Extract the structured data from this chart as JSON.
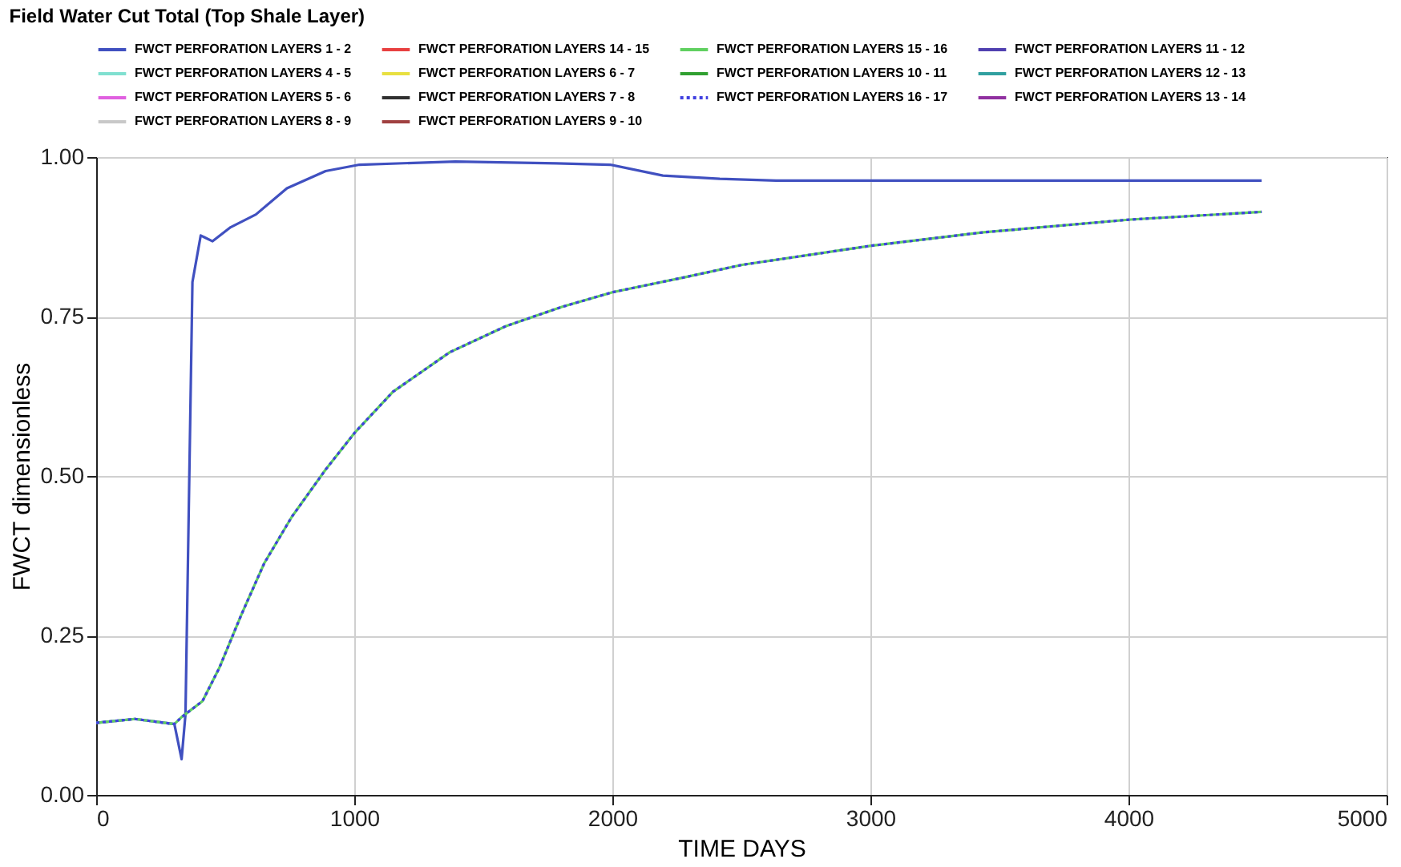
{
  "chart_data": {
    "type": "line",
    "title": "Field Water Cut Total (Top Shale Layer)",
    "xlabel": "TIME  DAYS",
    "ylabel": "FWCT  dimensionless",
    "xlim": [
      0,
      5000
    ],
    "xticks": [
      0,
      1000,
      2000,
      3000,
      4000,
      5000
    ],
    "ylim": [
      0,
      1
    ],
    "yticks": [
      {
        "value": 0,
        "label": "0.00"
      },
      {
        "value": 0.25,
        "label": "0.25"
      },
      {
        "value": 0.5,
        "label": "0.50"
      },
      {
        "value": 0.75,
        "label": "0.75"
      },
      {
        "value": 1,
        "label": "1.00"
      }
    ],
    "grid": true,
    "legend": "top",
    "marker": "none",
    "line_style": "solid",
    "series": [
      {
        "name": "FWCT PERFORATION LAYERS 1 - 2",
        "color": "#4050c0",
        "x": [
          0,
          150,
          303,
          331,
          346,
          373,
          405,
          451,
          521,
          619,
          739,
          889,
          1020,
          1392,
          1784,
          1991,
          2196,
          2416,
          2634,
          4516
        ],
        "values": [
          0.113,
          0.119,
          0.111,
          0.056,
          0.126,
          0.804,
          0.877,
          0.868,
          0.89,
          0.91,
          0.951,
          0.978,
          0.988,
          0.993,
          0.99,
          0.988,
          0.971,
          0.966,
          0.963,
          0.963
        ]
      },
      {
        "name": "FWCT PERFORATION LAYERS 14 - 15",
        "color": "#e84040"
      },
      {
        "name": "FWCT PERFORATION LAYERS 15 - 16",
        "color": "#60d060",
        "x": [
          0,
          150,
          303,
          331,
          412,
          477,
          562,
          651,
          758,
          889,
          1000,
          1150,
          1370,
          1588,
          1804,
          2000,
          2286,
          2503,
          3004,
          3438,
          4007,
          4516
        ],
        "values": [
          0.113,
          0.119,
          0.111,
          0.122,
          0.147,
          0.199,
          0.282,
          0.363,
          0.436,
          0.51,
          0.567,
          0.632,
          0.694,
          0.735,
          0.765,
          0.788,
          0.812,
          0.831,
          0.861,
          0.882,
          0.902,
          0.914
        ]
      },
      {
        "name": "FWCT PERFORATION LAYERS 11 - 12",
        "color": "#5040b0"
      },
      {
        "name": "FWCT PERFORATION LAYERS 4 - 5",
        "color": "#80e0d0"
      },
      {
        "name": "FWCT PERFORATION LAYERS 6 - 7",
        "color": "#e8e040"
      },
      {
        "name": "FWCT PERFORATION LAYERS 10 - 11",
        "color": "#30a030"
      },
      {
        "name": "FWCT PERFORATION LAYERS 12 - 13",
        "color": "#30a0a0"
      },
      {
        "name": "FWCT PERFORATION LAYERS 5 - 6",
        "color": "#e060e0"
      },
      {
        "name": "FWCT PERFORATION LAYERS 7 - 8",
        "color": "#303030"
      },
      {
        "name": "FWCT PERFORATION LAYERS 16 - 17",
        "color": "#4040e0",
        "line_style": "dotted",
        "x": [
          0,
          150,
          303,
          331,
          412,
          477,
          562,
          651,
          758,
          889,
          1000,
          1150,
          1370,
          1588,
          1804,
          2000,
          2286,
          2503,
          3004,
          3438,
          4007,
          4516
        ],
        "values": [
          0.113,
          0.119,
          0.111,
          0.122,
          0.147,
          0.199,
          0.282,
          0.363,
          0.436,
          0.51,
          0.567,
          0.632,
          0.694,
          0.735,
          0.765,
          0.788,
          0.812,
          0.831,
          0.861,
          0.882,
          0.902,
          0.914
        ]
      },
      {
        "name": "FWCT PERFORATION LAYERS 13 - 14",
        "color": "#9030a0"
      },
      {
        "name": "FWCT PERFORATION LAYERS 8 - 9",
        "color": "#c8c8c8"
      },
      {
        "name": "FWCT PERFORATION LAYERS 9 - 10",
        "color": "#a04040"
      }
    ]
  }
}
